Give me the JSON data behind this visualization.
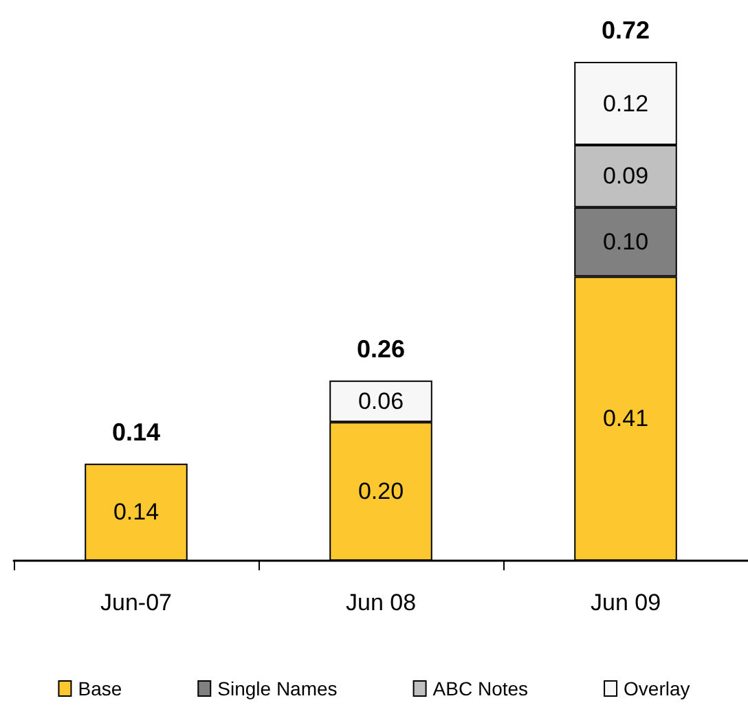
{
  "chart_data": {
    "type": "bar",
    "stacked": true,
    "categories": [
      "Jun-07",
      "Jun 08",
      "Jun 09"
    ],
    "series": [
      {
        "name": "Base",
        "color": "#fdc82f",
        "values": [
          0.14,
          0.2,
          0.41
        ],
        "value_labels": [
          "0.14",
          "0.20",
          "0.41"
        ]
      },
      {
        "name": "Single Names",
        "color": "#808080",
        "values": [
          null,
          null,
          0.1
        ],
        "value_labels": [
          null,
          null,
          "0.10"
        ]
      },
      {
        "name": "ABC Notes",
        "color": "#c0c0c0",
        "values": [
          null,
          null,
          0.09
        ],
        "value_labels": [
          null,
          null,
          "0.09"
        ]
      },
      {
        "name": "Overlay",
        "color": "#f7f7f7",
        "values": [
          null,
          0.06,
          0.12
        ],
        "value_labels": [
          null,
          "0.06",
          "0.12"
        ]
      }
    ],
    "totals": [
      "0.14",
      "0.26",
      "0.72"
    ],
    "legend": "bottom",
    "grid": false
  }
}
